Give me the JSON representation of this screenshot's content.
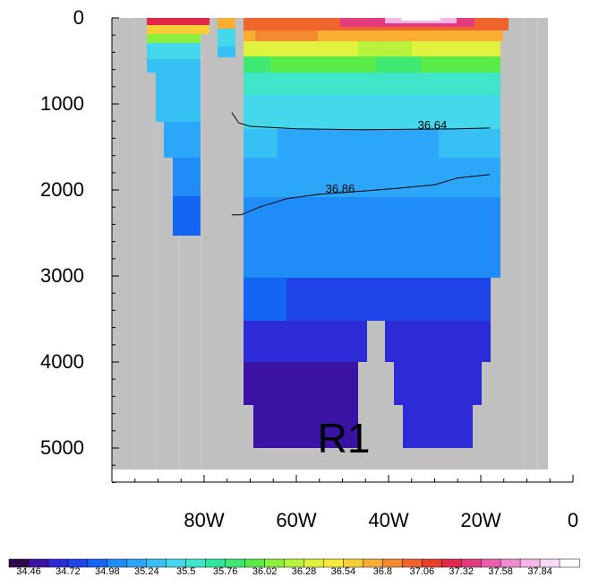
{
  "chart_data": {
    "type": "heatmap",
    "title": "",
    "xlabel": "",
    "ylabel": "",
    "panel_label": "R1",
    "x_ticks": [
      {
        "value": -80,
        "label": "80W"
      },
      {
        "value": -60,
        "label": "60W"
      },
      {
        "value": -40,
        "label": "40W"
      },
      {
        "value": -20,
        "label": "20W"
      },
      {
        "value": 0,
        "label": "0"
      }
    ],
    "y_ticks": [
      {
        "value": 0,
        "label": "0"
      },
      {
        "value": 1000,
        "label": "1000"
      },
      {
        "value": 2000,
        "label": "2000"
      },
      {
        "value": 3000,
        "label": "3000"
      },
      {
        "value": 4000,
        "label": "4000"
      },
      {
        "value": 5000,
        "label": "5000"
      }
    ],
    "xlim": [
      -100,
      0
    ],
    "ylim": [
      5400,
      0
    ],
    "missing_color": "#c0c0c0",
    "colorbar": {
      "colors": [
        "#2c0a4b",
        "#3a13a5",
        "#2c2bd6",
        "#1f44e8",
        "#1366f5",
        "#1f8cf8",
        "#2ba6f8",
        "#37c0f4",
        "#45d8ec",
        "#3fe6c9",
        "#2fe89e",
        "#3ee872",
        "#5aeb4a",
        "#8cef3f",
        "#b9f23c",
        "#e0f23e",
        "#f7ec3c",
        "#f9cf37",
        "#f8ad33",
        "#f58a30",
        "#f0652c",
        "#e8402b",
        "#e1284a",
        "#e33c7e",
        "#ea5fae",
        "#f08bcf",
        "#f6b5e6",
        "#fbdaf5",
        "#ffffff"
      ],
      "labels": [
        "34.46",
        "34.72",
        "34.98",
        "35.24",
        "35.5",
        "35.76",
        "36.02",
        "36.28",
        "36.54",
        "36.8",
        "37.06",
        "37.32",
        "37.58",
        "37.84"
      ]
    },
    "contours": [
      {
        "label": "36.64",
        "label_at": [
          -30.5,
          1290
        ],
        "points": [
          [
            -74,
            1100
          ],
          [
            -72.5,
            1220
          ],
          [
            -70,
            1260
          ],
          [
            -60,
            1290
          ],
          [
            -45,
            1300
          ],
          [
            -35,
            1295
          ],
          [
            -25,
            1290
          ],
          [
            -18,
            1280
          ]
        ]
      },
      {
        "label": "36.86",
        "label_at": [
          -50.5,
          2030
        ],
        "points": [
          [
            -74,
            2290
          ],
          [
            -72,
            2290
          ],
          [
            -68,
            2200
          ],
          [
            -62,
            2100
          ],
          [
            -55,
            2050
          ],
          [
            -45,
            2010
          ],
          [
            -38,
            1980
          ],
          [
            -30,
            1940
          ],
          [
            -25,
            1860
          ],
          [
            -18,
            1820
          ]
        ]
      }
    ]
  }
}
